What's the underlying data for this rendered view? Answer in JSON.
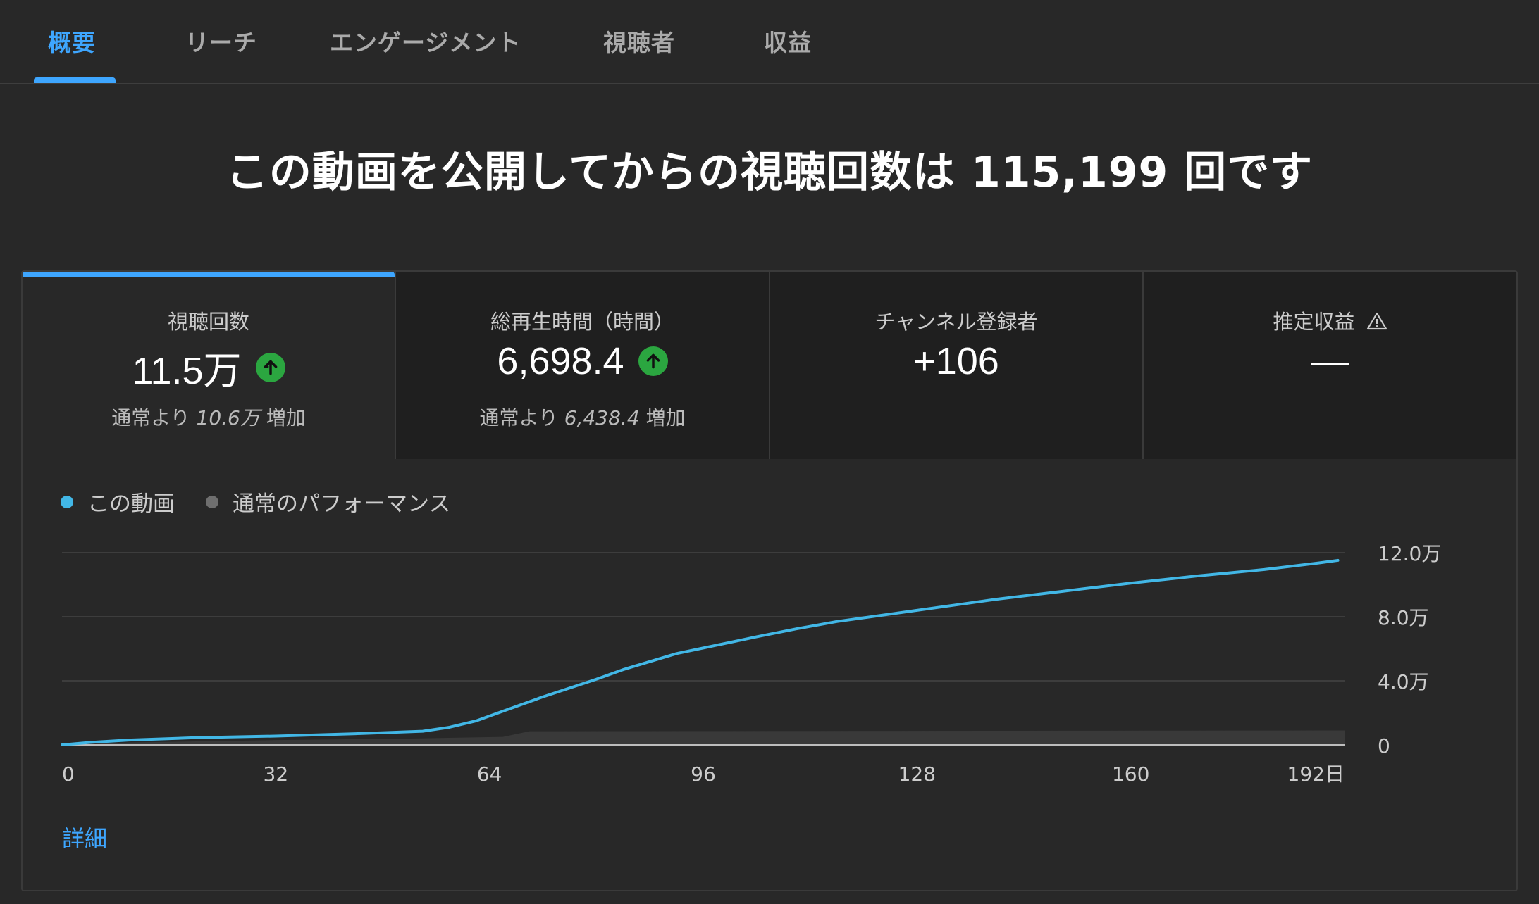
{
  "tabs": [
    {
      "label": "概要",
      "active": true
    },
    {
      "label": "リーチ",
      "active": false
    },
    {
      "label": "エンゲージメント",
      "active": false
    },
    {
      "label": "視聴者",
      "active": false
    },
    {
      "label": "収益",
      "active": false
    }
  ],
  "headline": "この動画を公開してからの視聴回数は 115,199 回です",
  "metrics": [
    {
      "title": "視聴回数",
      "value": "11.5万",
      "trend": "up",
      "sub_prefix": "通常より ",
      "sub_value": "10.6万",
      "sub_suffix": " 増加",
      "selected": true
    },
    {
      "title": "総再生時間（時間）",
      "value": "6,698.4",
      "trend": "up",
      "sub_prefix": "通常より ",
      "sub_value": "6,438.4",
      "sub_suffix": " 増加",
      "selected": false
    },
    {
      "title": "チャンネル登録者",
      "value": "+106",
      "trend": "none",
      "selected": false
    },
    {
      "title": "推定収益",
      "value": "—",
      "trend": "none",
      "icon": "warning-icon",
      "selected": false
    }
  ],
  "legend": {
    "this_video": "この動画",
    "typical": "通常のパフォーマンス"
  },
  "details_link": "詳細",
  "colors": {
    "accent": "#3ea6ff",
    "line": "#42b7e6",
    "typical_band": "#3b3b3b",
    "typical_dot": "#6f6f6f",
    "trend_up": "#2ba640"
  },
  "chart_data": {
    "type": "line",
    "x_ticks": [
      "0",
      "32",
      "64",
      "96",
      "128",
      "160",
      "192日"
    ],
    "y_ticks": [
      "0",
      "4.0万",
      "8.0万",
      "12.0万"
    ],
    "xlim": [
      0,
      192
    ],
    "ylim": [
      0,
      120000
    ],
    "series": [
      {
        "name": "この動画",
        "x": [
          0,
          4,
          10,
          20,
          32,
          44,
          54,
          58,
          62,
          64,
          68,
          72,
          76,
          80,
          84,
          88,
          92,
          96,
          100,
          104,
          110,
          116,
          122,
          128,
          134,
          140,
          150,
          160,
          170,
          180,
          188,
          191
        ],
        "y": [
          0,
          1500,
          3000,
          4500,
          5500,
          7000,
          8500,
          11000,
          15000,
          18000,
          24000,
          30000,
          35500,
          41000,
          47000,
          52000,
          57000,
          60500,
          64000,
          67500,
          72500,
          77000,
          80500,
          84000,
          87500,
          91000,
          96000,
          101000,
          105500,
          109500,
          113500,
          115199
        ]
      },
      {
        "name": "通常のパフォーマンス",
        "band": true,
        "x": [
          0,
          10,
          32,
          50,
          66,
          70,
          192
        ],
        "low": [
          0,
          0,
          0,
          0,
          0,
          0,
          0
        ],
        "high": [
          0,
          1500,
          3000,
          3800,
          5000,
          8500,
          9000
        ]
      }
    ]
  }
}
